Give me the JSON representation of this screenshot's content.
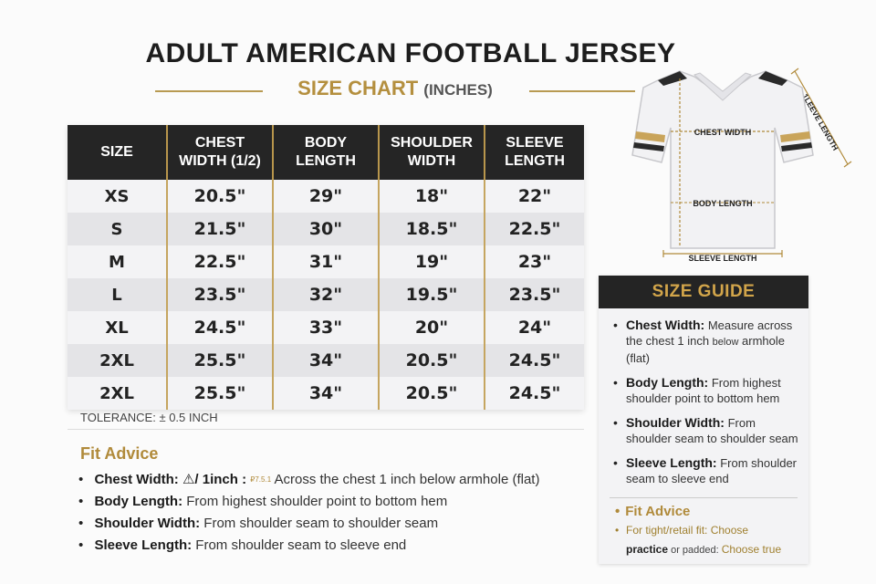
{
  "header": {
    "title": "ADULT AMERICAN FOOTBALL JERSEY",
    "subtitle": "SIZE CHART",
    "unit": "(INCHES)"
  },
  "table": {
    "columns": [
      {
        "line1": "SIZE",
        "line2": ""
      },
      {
        "line1": "CHEST",
        "line2": "WIDTH (1/2)"
      },
      {
        "line1": "BODY",
        "line2": "LENGTH"
      },
      {
        "line1": "SHOULDER",
        "line2": "WIDTH"
      },
      {
        "line1": "SLEEVE",
        "line2": "LENGTH"
      }
    ],
    "rows": [
      [
        "XS",
        "20.5\"",
        "29\"",
        "18\"",
        "22\""
      ],
      [
        "S",
        "21.5\"",
        "30\"",
        "18.5\"",
        "22.5\""
      ],
      [
        "M",
        "22.5\"",
        "31\"",
        "19\"",
        "23\""
      ],
      [
        "L",
        "23.5\"",
        "32\"",
        "19.5\"",
        "23.5\""
      ],
      [
        "XL",
        "24.5\"",
        "33\"",
        "20\"",
        "24\""
      ],
      [
        "2XL",
        "25.5\"",
        "34\"",
        "20.5\"",
        "24.5\""
      ],
      [
        "2XL",
        "25.5\"",
        "34\"",
        "20.5\"",
        "24.5\""
      ]
    ]
  },
  "tolerance": "TOLERANCE: ± 0.5 INCH",
  "fit_advice": {
    "title": "Fit Advice",
    "items": [
      {
        "label": "Chest Width:",
        "extra": "⚠/ 1inch :",
        "tiny": "₽7.5.1",
        "text": " Across the chest 1 inch below armhole (flat)"
      },
      {
        "label": "Body Length:",
        "extra": "",
        "tiny": "",
        "text": " From highest shoulder point to bottom hem"
      },
      {
        "label": "Shoulder Width:",
        "extra": "",
        "tiny": "",
        "text": " From shoulder seam to shoulder seam"
      },
      {
        "label": "Sleeve Length:",
        "extra": "",
        "tiny": "",
        "text": " From shoulder seam to sleeve end"
      }
    ]
  },
  "diagram": {
    "chest_label": "CHEST WIDTH",
    "body_label": "BODY LENGTH",
    "sleeve_bottom_label": "SLEEVE LENGTH",
    "sleeve_side_label": "1LEEVE LENGTH"
  },
  "guide": {
    "title": "SIZE GUIDE",
    "items": [
      {
        "label": "Chest Width:",
        "text": " Measure across the chest 1 inch ",
        "small": "below",
        "text2": " armhole (flat)"
      },
      {
        "label": "Body Length:",
        "text": " From highest shoulder point to bottom hem",
        "small": "",
        "text2": ""
      },
      {
        "label": "Shoulder Width:",
        "text": " From shoulder seam to shoulder seam",
        "small": "",
        "text2": ""
      },
      {
        "label": "Sleeve Length:",
        "text": " From shoulder seam to sleeve end",
        "small": "",
        "text2": ""
      }
    ],
    "fit_title": "Fit Advice",
    "fit_line1": "For tight/retail fit: Choose",
    "fit_line2_bold": "practice",
    "fit_line2_small": " or padded: ",
    "fit_line2_end": "Choose true"
  },
  "colors": {
    "accent_gold": "#b48f3e",
    "header_dark": "#252525",
    "row_light": "#f3f3f5",
    "row_dark": "#e4e4e7"
  }
}
